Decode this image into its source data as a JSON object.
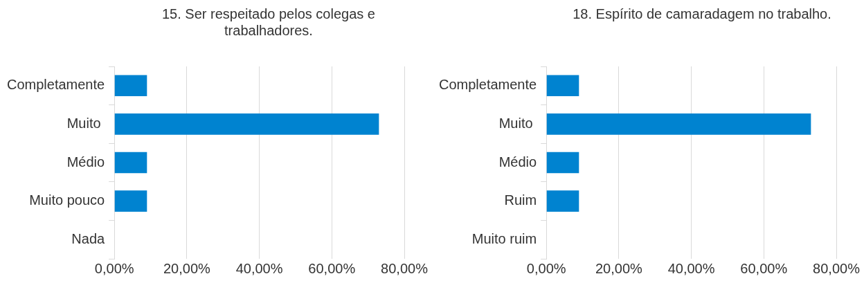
{
  "chart_data": [
    {
      "type": "bar",
      "orientation": "horizontal",
      "title": "15. Ser respeitado pelos colegas e trabalhadores.",
      "categories": [
        "Completamente",
        "Muito ",
        "Médio",
        "Muito pouco",
        "Nada"
      ],
      "values": [
        9,
        73,
        9,
        9,
        0
      ],
      "color": "#0083d0",
      "xlim": [
        0,
        80
      ],
      "xticks": [
        {
          "value": 0,
          "label": "0,00%"
        },
        {
          "value": 20,
          "label": "20,00%"
        },
        {
          "value": 40,
          "label": "40,00%"
        },
        {
          "value": 60,
          "label": "60,00%"
        },
        {
          "value": 80,
          "label": "80,00%"
        }
      ],
      "grid": "x",
      "legend": false
    },
    {
      "type": "bar",
      "orientation": "horizontal",
      "title": "18. Espírito de camaradagem no trabalho.",
      "categories": [
        "Completamente",
        "Muito ",
        "Médio",
        "Ruim",
        "Muito ruim"
      ],
      "values": [
        9,
        73,
        9,
        9,
        0
      ],
      "color": "#0083d0",
      "xlim": [
        0,
        80
      ],
      "xticks": [
        {
          "value": 0,
          "label": "0,00%"
        },
        {
          "value": 20,
          "label": "20,00%"
        },
        {
          "value": 40,
          "label": "40,00%"
        },
        {
          "value": 60,
          "label": "60,00%"
        },
        {
          "value": 80,
          "label": "80,00%"
        }
      ],
      "grid": "x",
      "legend": false
    }
  ]
}
